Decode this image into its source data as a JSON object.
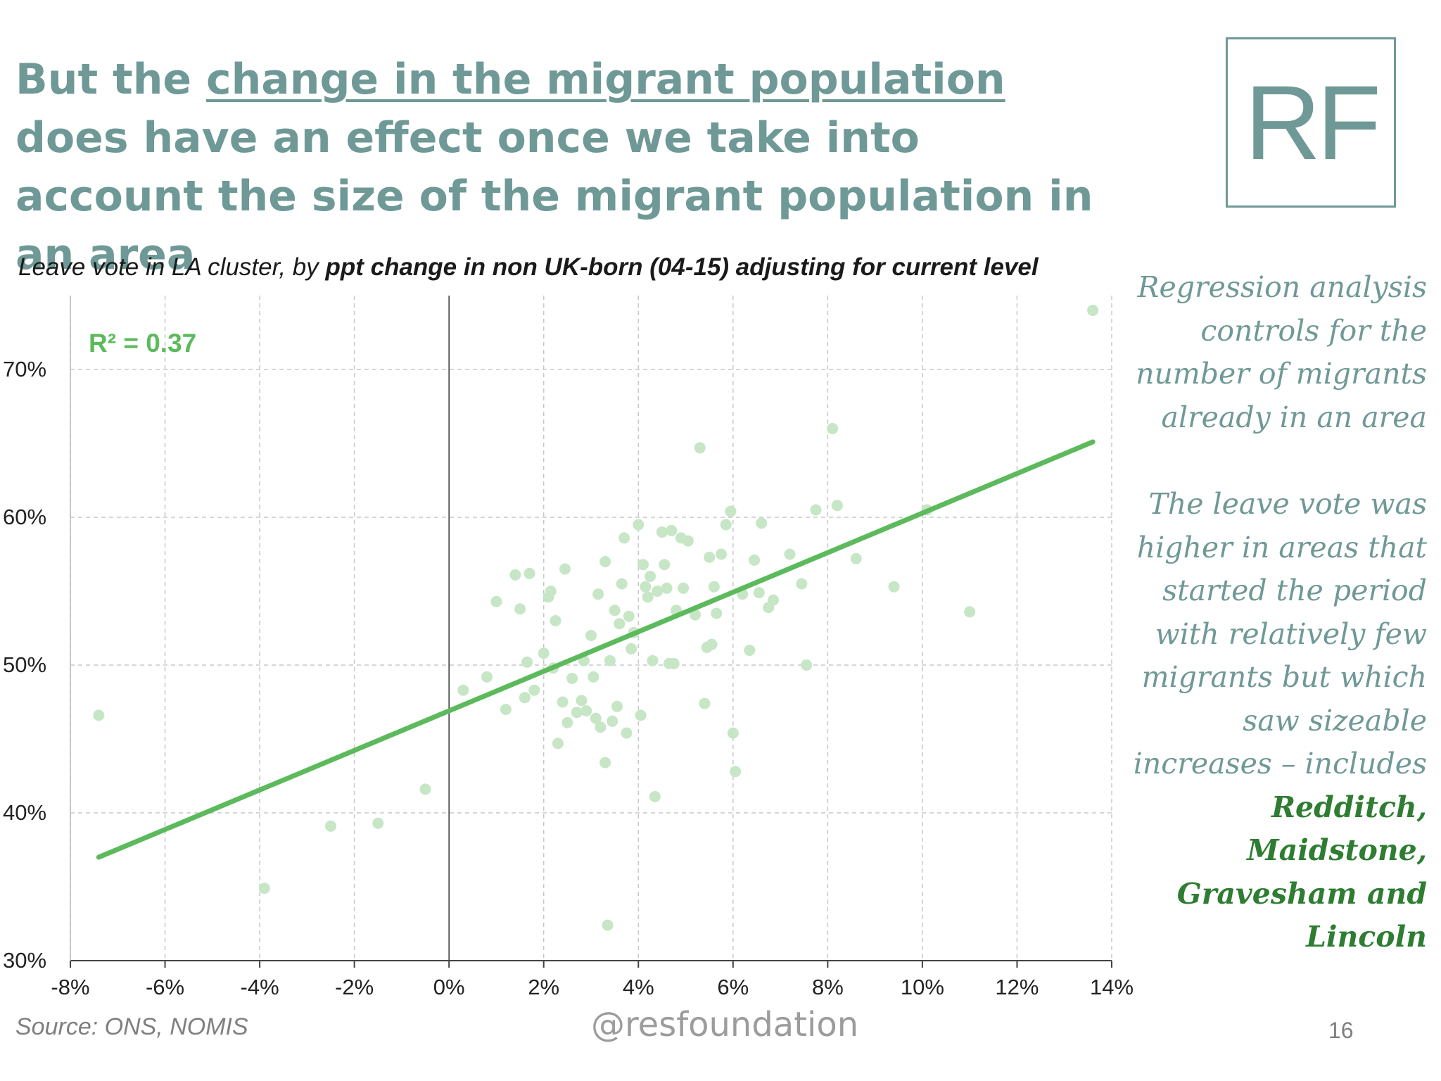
{
  "slide": {
    "title_before": "But the ",
    "title_underlined": "change in the migrant population ",
    "title_after": "does have an effect once we take into account the size of the migrant population in an area",
    "logo_text": "RF",
    "chart_title_plain": "Leave vote in LA cluster, by ",
    "chart_title_bold": "ppt change in non UK-born (04-15) adjusting for current level",
    "sidebar_para1": "Regression analysis controls for the number of migrants already in an area",
    "sidebar_para2": "The leave vote was higher in areas that started the period with relatively few migrants but which saw sizeable increases – includes ",
    "sidebar_highlight": "Redditch, Maidstone, Gravesham and Lincoln",
    "source": "Source: ONS, NOMIS",
    "handle": "@resfoundation",
    "page_number": "16"
  },
  "chart_data": {
    "type": "scatter",
    "title": "Leave vote in LA cluster, by ppt change in non UK-born (04-15) adjusting for current level",
    "xlim": [
      -8,
      14
    ],
    "ylim": [
      30,
      75
    ],
    "x_ticks": [
      -8,
      -6,
      -4,
      -2,
      0,
      2,
      4,
      6,
      8,
      10,
      12,
      14
    ],
    "x_tick_labels": [
      "-8%",
      "-6%",
      "-4%",
      "-2%",
      "0%",
      "2%",
      "4%",
      "6%",
      "8%",
      "10%",
      "12%",
      "14%"
    ],
    "y_ticks": [
      30,
      40,
      50,
      60,
      70
    ],
    "y_tick_labels": [
      "30%",
      "40%",
      "50%",
      "60%",
      "70%"
    ],
    "grid": true,
    "annotation": "R² = 0.37",
    "colors": {
      "points": "#c6e6c6",
      "trendline": "#5cba5c",
      "annotation": "#5cba5c",
      "grid": "#c8c8c8"
    },
    "trendline": {
      "x": [
        -7.4,
        13.6
      ],
      "y": [
        37.0,
        65.1
      ]
    },
    "points": [
      [
        -7.4,
        46.6
      ],
      [
        -3.9,
        34.9
      ],
      [
        -2.5,
        39.1
      ],
      [
        -1.5,
        39.3
      ],
      [
        -0.5,
        41.6
      ],
      [
        0.3,
        48.3
      ],
      [
        0.8,
        49.2
      ],
      [
        1.0,
        54.3
      ],
      [
        1.2,
        47.0
      ],
      [
        1.4,
        56.1
      ],
      [
        1.5,
        53.8
      ],
      [
        1.6,
        47.8
      ],
      [
        1.65,
        50.2
      ],
      [
        1.7,
        56.2
      ],
      [
        1.8,
        48.3
      ],
      [
        2.0,
        50.8
      ],
      [
        2.1,
        54.6
      ],
      [
        2.15,
        55.0
      ],
      [
        2.2,
        49.8
      ],
      [
        2.25,
        53.0
      ],
      [
        2.3,
        44.7
      ],
      [
        2.4,
        47.5
      ],
      [
        2.45,
        56.5
      ],
      [
        2.5,
        46.1
      ],
      [
        2.6,
        49.1
      ],
      [
        2.7,
        46.8
      ],
      [
        2.8,
        47.6
      ],
      [
        2.85,
        50.3
      ],
      [
        2.9,
        46.9
      ],
      [
        3.0,
        52.0
      ],
      [
        3.05,
        49.2
      ],
      [
        3.1,
        46.4
      ],
      [
        3.15,
        54.8
      ],
      [
        3.2,
        45.8
      ],
      [
        3.3,
        57.0
      ],
      [
        3.3,
        43.4
      ],
      [
        3.35,
        32.4
      ],
      [
        3.4,
        50.3
      ],
      [
        3.45,
        46.2
      ],
      [
        3.5,
        53.7
      ],
      [
        3.55,
        47.2
      ],
      [
        3.6,
        52.8
      ],
      [
        3.65,
        55.5
      ],
      [
        3.7,
        58.6
      ],
      [
        3.75,
        45.4
      ],
      [
        3.8,
        53.3
      ],
      [
        3.85,
        51.1
      ],
      [
        3.9,
        52.2
      ],
      [
        4.0,
        59.5
      ],
      [
        4.05,
        46.6
      ],
      [
        4.1,
        56.8
      ],
      [
        4.15,
        55.3
      ],
      [
        4.2,
        54.6
      ],
      [
        4.25,
        56.0
      ],
      [
        4.3,
        50.3
      ],
      [
        4.35,
        41.1
      ],
      [
        4.4,
        55.0
      ],
      [
        4.5,
        59.0
      ],
      [
        4.55,
        56.8
      ],
      [
        4.6,
        55.2
      ],
      [
        4.65,
        50.1
      ],
      [
        4.7,
        59.1
      ],
      [
        4.75,
        50.1
      ],
      [
        4.8,
        53.7
      ],
      [
        4.9,
        58.6
      ],
      [
        4.95,
        55.2
      ],
      [
        5.05,
        58.4
      ],
      [
        5.2,
        53.4
      ],
      [
        5.3,
        64.7
      ],
      [
        5.4,
        47.4
      ],
      [
        5.45,
        51.2
      ],
      [
        5.5,
        57.3
      ],
      [
        5.55,
        51.4
      ],
      [
        5.6,
        55.3
      ],
      [
        5.65,
        53.5
      ],
      [
        5.75,
        57.5
      ],
      [
        5.85,
        59.5
      ],
      [
        5.95,
        60.4
      ],
      [
        6.0,
        45.4
      ],
      [
        6.05,
        42.8
      ],
      [
        6.2,
        54.8
      ],
      [
        6.35,
        51.0
      ],
      [
        6.45,
        57.1
      ],
      [
        6.55,
        54.9
      ],
      [
        6.6,
        59.6
      ],
      [
        6.75,
        53.9
      ],
      [
        6.85,
        54.4
      ],
      [
        7.2,
        57.5
      ],
      [
        7.45,
        55.5
      ],
      [
        7.55,
        50.0
      ],
      [
        7.75,
        60.5
      ],
      [
        8.1,
        66.0
      ],
      [
        8.2,
        60.8
      ],
      [
        8.6,
        57.2
      ],
      [
        9.4,
        55.3
      ],
      [
        10.1,
        60.5
      ],
      [
        11.0,
        53.6
      ],
      [
        13.6,
        74.0
      ]
    ]
  }
}
